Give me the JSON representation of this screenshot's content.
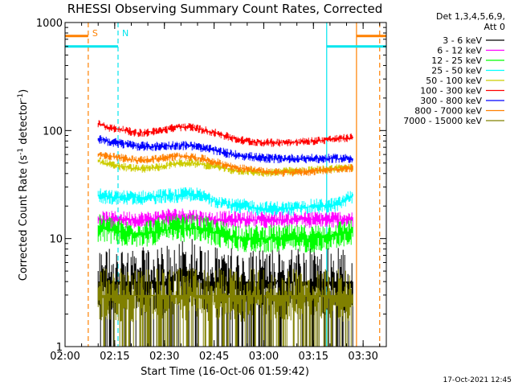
{
  "chart_data": {
    "type": "line",
    "title": "RHESSI Observing Summary Count Rates, Corrected",
    "xlabel": "Start Time (16-Oct-06 01:59:42)",
    "ylabel_main": "Corrected Count Rate (s",
    "ylabel_sup1": "-1",
    "ylabel_mid": " detector",
    "ylabel_sup2": "-1",
    "ylabel_end": ")",
    "yscale": "log",
    "xlim": [
      "02:00",
      "03:37"
    ],
    "ylim": [
      1,
      1000
    ],
    "x_ticks": [
      "02:00",
      "02:15",
      "02:30",
      "02:45",
      "03:00",
      "03:15",
      "03:30"
    ],
    "y_ticks": [
      {
        "v": 1,
        "label": "1"
      },
      {
        "v": 10,
        "label": "10"
      },
      {
        "v": 100,
        "label": "100"
      },
      {
        "v": 1000,
        "label": "1000"
      }
    ],
    "legend_header": [
      "Det 1,3,4,5,6,9,",
      "Att 0"
    ],
    "legend_position": "right",
    "markers": [
      {
        "label": "S",
        "time": "02:07",
        "color": "#ff8000",
        "style": "dashed"
      },
      {
        "label": "N",
        "time": "02:16",
        "color": "#00e5ee",
        "style": "dashed"
      },
      {
        "label": "",
        "time": "03:19",
        "color": "#00e5ee",
        "style": "solid"
      },
      {
        "label": "",
        "time": "03:28",
        "color": "#ff8000",
        "style": "solid"
      },
      {
        "label": "",
        "time": "03:35",
        "color": "#ff8000",
        "style": "dashed"
      }
    ],
    "flag_bars": [
      {
        "color": "#ff8000",
        "y": 750,
        "segments": [
          [
            "02:00",
            "02:07"
          ],
          [
            "03:28",
            "03:37"
          ]
        ]
      },
      {
        "color": "#00e5ee",
        "y": 600,
        "segments": [
          [
            "02:00",
            "02:16"
          ],
          [
            "03:19",
            "03:37"
          ]
        ]
      }
    ],
    "date_stamp": "17-Oct-2021 12:45",
    "series": [
      {
        "name": "3 - 6 keV",
        "color": "#000000",
        "time_range": [
          "02:10",
          "03:27"
        ],
        "values": [
          4,
          4,
          4,
          4,
          4,
          4,
          5,
          5,
          4,
          4,
          4,
          4,
          4,
          4,
          4,
          4,
          4,
          4,
          4,
          4
        ],
        "noise": 0.32,
        "drops": true
      },
      {
        "name": "6 - 12 keV",
        "color": "#ff00ff",
        "time_range": [
          "02:10",
          "03:27"
        ],
        "values": [
          15,
          15,
          15,
          15,
          15,
          16,
          16,
          16,
          15,
          15,
          15,
          15,
          15,
          15,
          15,
          15,
          15,
          15,
          15,
          15
        ],
        "noise": 0.08
      },
      {
        "name": "12 - 25 keV",
        "color": "#00ff00",
        "time_range": [
          "02:10",
          "03:27"
        ],
        "values": [
          12.5,
          12,
          11,
          11,
          11.5,
          12,
          12.5,
          12.5,
          12,
          11,
          10.5,
          10,
          10,
          10,
          10,
          10,
          10,
          10.5,
          11,
          11.5
        ],
        "noise": 0.13
      },
      {
        "name": "25 - 50 keV",
        "color": "#00ffff",
        "time_range": [
          "02:10",
          "03:27"
        ],
        "values": [
          25,
          24,
          24,
          24,
          24,
          25,
          25,
          26,
          24,
          22,
          20,
          20,
          19,
          19,
          19,
          19,
          20,
          20,
          21,
          25
        ],
        "noise": 0.07
      },
      {
        "name": "50 - 100 keV",
        "color": "#cccc00",
        "time_range": [
          "02:10",
          "03:27"
        ],
        "values": [
          52,
          48,
          46,
          44,
          45,
          47,
          50,
          50,
          48,
          46,
          43,
          42,
          41,
          41,
          42,
          42,
          43,
          44,
          45,
          45
        ],
        "noise": 0.04
      },
      {
        "name": "100 - 300 keV",
        "color": "#ff0000",
        "time_range": [
          "02:10",
          "03:27"
        ],
        "values": [
          115,
          105,
          100,
          95,
          97,
          102,
          108,
          107,
          100,
          93,
          85,
          80,
          78,
          77,
          78,
          78,
          80,
          82,
          84,
          86
        ],
        "noise": 0.04
      },
      {
        "name": "300 - 800 keV",
        "color": "#0000ff",
        "time_range": [
          "02:10",
          "03:27"
        ],
        "values": [
          84,
          78,
          75,
          72,
          71,
          72,
          73,
          72,
          68,
          64,
          60,
          58,
          56,
          55,
          55,
          55,
          55,
          55,
          55,
          55
        ],
        "noise": 0.045
      },
      {
        "name": "800 - 7000 keV",
        "color": "#ff8000",
        "time_range": [
          "02:10",
          "03:27"
        ],
        "values": [
          60,
          57,
          55,
          53,
          54,
          56,
          58,
          57,
          54,
          50,
          46,
          44,
          42,
          41,
          41,
          41,
          42,
          43,
          44,
          45
        ],
        "noise": 0.04
      },
      {
        "name": "7000 - 15000 keV",
        "color": "#808000",
        "time_range": [
          "02:10",
          "03:27"
        ],
        "values": [
          3,
          3,
          3,
          3,
          3,
          3,
          3,
          3,
          3,
          3,
          3,
          3,
          3,
          3,
          3,
          3,
          3,
          3,
          3,
          3
        ],
        "noise": 0.25,
        "drops": true
      }
    ]
  }
}
